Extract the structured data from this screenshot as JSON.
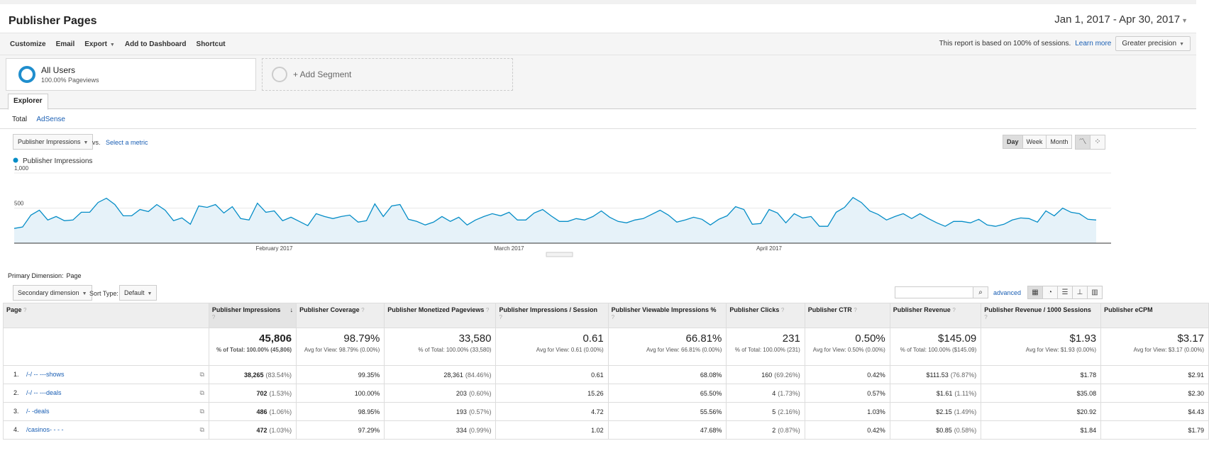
{
  "header": {
    "title": "Publisher Pages",
    "date_range": "Jan 1, 2017 - Apr 30, 2017"
  },
  "toolbar": {
    "customize": "Customize",
    "email": "Email",
    "export": "Export",
    "add_dashboard": "Add to Dashboard",
    "shortcut": "Shortcut",
    "sessions_note": "This report is based on 100% of sessions.",
    "learn_more": "Learn more",
    "precision": "Greater precision"
  },
  "segments": {
    "all_users": "All Users",
    "all_users_sub": "100.00% Pageviews",
    "add_segment": "+ Add Segment"
  },
  "tabs": {
    "explorer": "Explorer",
    "total": "Total",
    "adsense": "AdSense"
  },
  "chart_controls": {
    "metric": "Publisher Impressions",
    "vs": "vs.",
    "select_metric": "Select a metric",
    "day": "Day",
    "week": "Week",
    "month": "Month"
  },
  "chart_data": {
    "type": "area",
    "legend": "Publisher Impressions",
    "x_tick_labels": [
      "February 2017",
      "March 2017",
      "April 2017"
    ],
    "y_tick_labels": [
      "1,000",
      "500"
    ],
    "ylim": [
      0,
      1000
    ],
    "line_color": "#058dc7",
    "values": [
      210,
      230,
      400,
      470,
      330,
      380,
      320,
      330,
      440,
      440,
      580,
      640,
      550,
      390,
      390,
      480,
      450,
      550,
      470,
      320,
      360,
      270,
      530,
      510,
      550,
      430,
      520,
      350,
      330,
      570,
      440,
      460,
      320,
      370,
      310,
      250,
      420,
      380,
      350,
      380,
      400,
      300,
      320,
      560,
      380,
      530,
      550,
      340,
      310,
      260,
      300,
      380,
      310,
      370,
      260,
      330,
      380,
      420,
      390,
      440,
      330,
      330,
      430,
      480,
      390,
      310,
      310,
      350,
      330,
      380,
      460,
      370,
      310,
      290,
      330,
      350,
      410,
      470,
      400,
      300,
      330,
      370,
      340,
      260,
      340,
      390,
      520,
      480,
      270,
      280,
      480,
      430,
      290,
      420,
      360,
      380,
      240,
      240,
      440,
      510,
      650,
      580,
      460,
      410,
      330,
      380,
      420,
      350,
      420,
      350,
      290,
      240,
      310,
      310,
      290,
      340,
      260,
      240,
      270,
      330,
      360,
      350,
      300,
      460,
      390,
      500,
      440,
      420,
      340,
      330
    ]
  },
  "table_controls": {
    "primary_dimension_label": "Primary Dimension:",
    "primary_dimension": "Page",
    "secondary": "Secondary dimension",
    "sort_type_label": "Sort Type:",
    "sort_default": "Default",
    "advanced": "advanced"
  },
  "table": {
    "columns": [
      "Page",
      "Publisher Impressions",
      "Publisher Coverage",
      "Publisher Monetized Pageviews",
      "Publisher Impressions / Session",
      "Publisher Viewable Impressions %",
      "Publisher Clicks",
      "Publisher CTR",
      "Publisher Revenue",
      "Publisher Revenue / 1000 Sessions",
      "Publisher eCPM"
    ],
    "totals": [
      {
        "big": "45,806",
        "small": "% of Total: 100.00% (45,806)"
      },
      {
        "big": "98.79%",
        "small": "Avg for View: 98.79% (0.00%)"
      },
      {
        "big": "33,580",
        "small": "% of Total: 100.00% (33,580)"
      },
      {
        "big": "0.61",
        "small": "Avg for View: 0.61 (0.00%)"
      },
      {
        "big": "66.81%",
        "small": "Avg for View: 66.81% (0.00%)"
      },
      {
        "big": "231",
        "small": "% of Total: 100.00% (231)"
      },
      {
        "big": "0.50%",
        "small": "Avg for View: 0.50% (0.00%)"
      },
      {
        "big": "$145.09",
        "small": "% of Total: 100.00% ($145.09)"
      },
      {
        "big": "$1.93",
        "small": "Avg for View: $1.93 (0.00%)"
      },
      {
        "big": "$3.17",
        "small": "Avg for View: $3.17 (0.00%)"
      }
    ],
    "rows": [
      {
        "num": "1.",
        "page": "/-/ -- ---shows",
        "impr": "38,265",
        "impr_pct": "(83.54%)",
        "coverage": "99.35%",
        "monetized": "28,361",
        "monetized_pct": "(84.46%)",
        "ips": "0.61",
        "viewable": "68.08%",
        "clicks": "160",
        "clicks_pct": "(69.26%)",
        "ctr": "0.42%",
        "revenue": "$111.53",
        "revenue_pct": "(76.87%)",
        "rps": "$1.78",
        "ecpm": "$2.91"
      },
      {
        "num": "2.",
        "page": "/-/ -- ---deals",
        "impr": "702",
        "impr_pct": "(1.53%)",
        "coverage": "100.00%",
        "monetized": "203",
        "monetized_pct": "(0.60%)",
        "ips": "15.26",
        "viewable": "65.50%",
        "clicks": "4",
        "clicks_pct": "(1.73%)",
        "ctr": "0.57%",
        "revenue": "$1.61",
        "revenue_pct": "(1.11%)",
        "rps": "$35.08",
        "ecpm": "$2.30"
      },
      {
        "num": "3.",
        "page": "/- -deals",
        "impr": "486",
        "impr_pct": "(1.06%)",
        "coverage": "98.95%",
        "monetized": "193",
        "monetized_pct": "(0.57%)",
        "ips": "4.72",
        "viewable": "55.56%",
        "clicks": "5",
        "clicks_pct": "(2.16%)",
        "ctr": "1.03%",
        "revenue": "$2.15",
        "revenue_pct": "(1.49%)",
        "rps": "$20.92",
        "ecpm": "$4.43"
      },
      {
        "num": "4.",
        "page": "/casinos- - - -",
        "impr": "472",
        "impr_pct": "(1.03%)",
        "coverage": "97.29%",
        "monetized": "334",
        "monetized_pct": "(0.99%)",
        "ips": "1.02",
        "viewable": "47.68%",
        "clicks": "2",
        "clicks_pct": "(0.87%)",
        "ctr": "0.42%",
        "revenue": "$0.85",
        "revenue_pct": "(0.58%)",
        "rps": "$1.84",
        "ecpm": "$1.79"
      }
    ]
  }
}
